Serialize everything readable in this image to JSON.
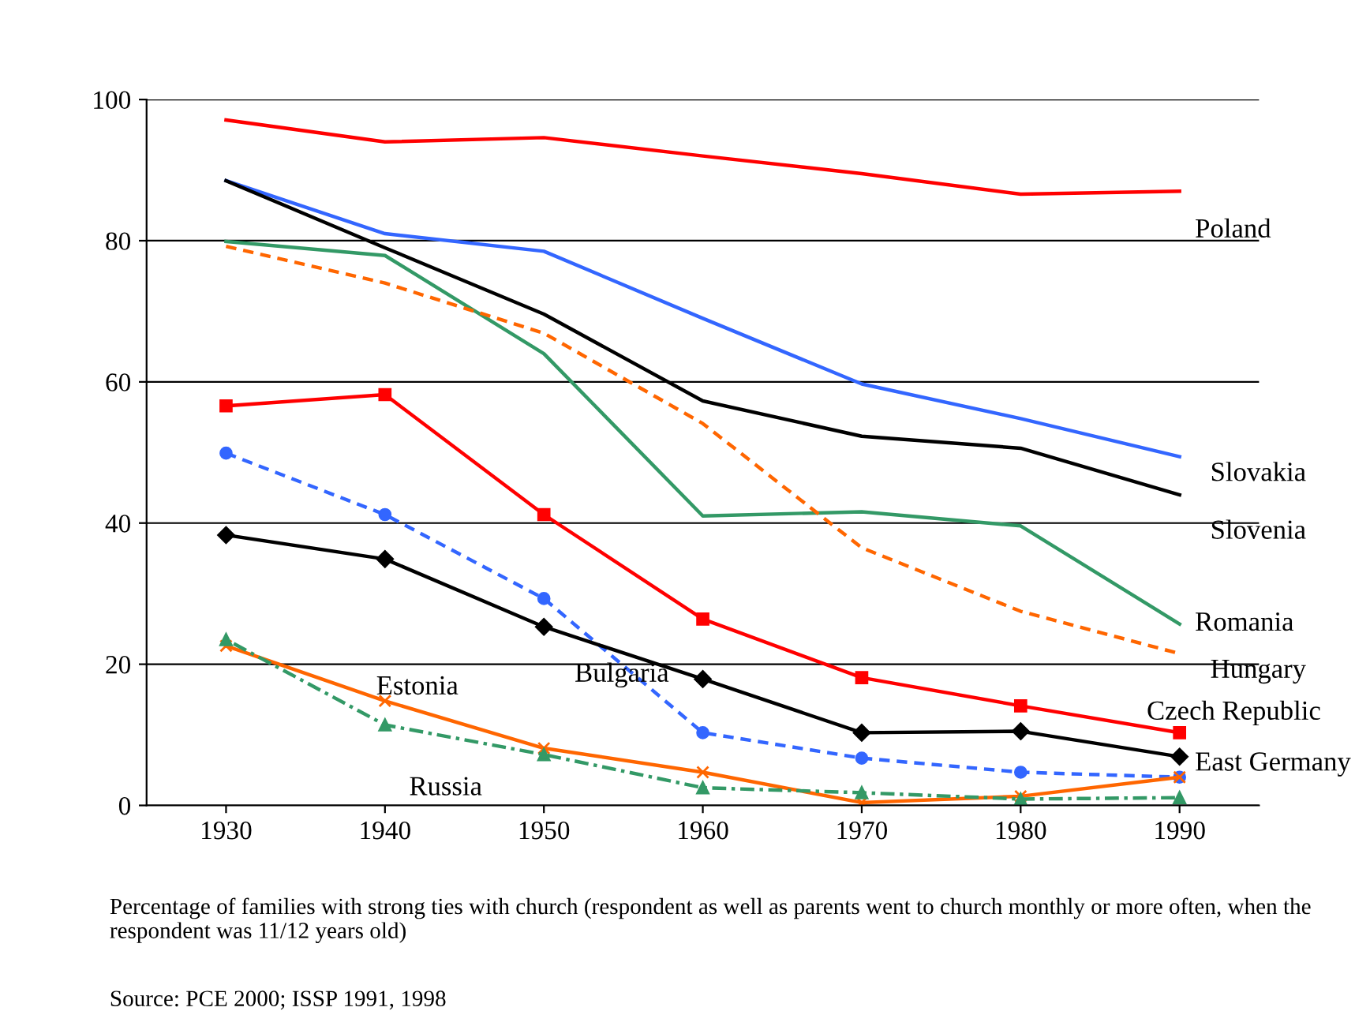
{
  "chart_data": {
    "type": "line",
    "x": [
      1930,
      1940,
      1950,
      1960,
      1970,
      1980,
      1990
    ],
    "xlim": [
      1925,
      1995
    ],
    "xticks": [
      1930,
      1940,
      1950,
      1960,
      1970,
      1980,
      1990
    ],
    "ylim": [
      0,
      100
    ],
    "yticks": [
      0,
      20,
      40,
      60,
      80,
      100
    ],
    "grid": "y",
    "legend": false,
    "series": [
      {
        "name": "Poland",
        "color": "#ff0000",
        "values": [
          97.1,
          94.0,
          94.6,
          92.0,
          89.5,
          86.6,
          87.0
        ],
        "marker": "none",
        "line_style": "solid"
      },
      {
        "name": "Slovakia",
        "color": "#3366ff",
        "values": [
          88.5,
          81.0,
          78.5,
          69.0,
          59.7,
          54.8,
          49.4
        ],
        "marker": "none",
        "line_style": "solid"
      },
      {
        "name": "Slovenia",
        "color": "#000000",
        "values": [
          88.5,
          79.0,
          69.6,
          57.3,
          52.3,
          50.6,
          44.0
        ],
        "marker": "none",
        "line_style": "solid"
      },
      {
        "name": "Romania",
        "color": "#339966",
        "values": [
          79.9,
          77.9,
          64.0,
          41.0,
          41.6,
          39.6,
          25.7
        ],
        "marker": "none",
        "line_style": "solid"
      },
      {
        "name": "Hungary",
        "color": "#ff6600",
        "values": [
          79.2,
          74.0,
          66.9,
          54.1,
          36.5,
          27.5,
          21.5
        ],
        "marker": "none",
        "line_style": "dashed"
      },
      {
        "name": "Czech Republic",
        "color": "#ff0000",
        "values": [
          56.6,
          58.2,
          41.2,
          26.4,
          18.1,
          14.1,
          10.3
        ],
        "marker": "square",
        "line_style": "solid"
      },
      {
        "name": "East Germany",
        "color": "#3366ff",
        "values": [
          49.9,
          41.2,
          29.3,
          10.3,
          6.7,
          4.7,
          4.0
        ],
        "marker": "circle",
        "line_style": "dashed"
      },
      {
        "name": "Bulgaria",
        "color": "#000000",
        "values": [
          38.3,
          34.9,
          25.3,
          17.9,
          10.3,
          10.5,
          6.9
        ],
        "marker": "diamond",
        "line_style": "solid"
      },
      {
        "name": "Estonia",
        "color": "#ff6600",
        "values": [
          22.6,
          14.8,
          8.1,
          4.7,
          0.4,
          1.3,
          4.0
        ],
        "marker": "cross",
        "line_style": "solid"
      },
      {
        "name": "Russia",
        "color": "#339966",
        "values": [
          23.5,
          11.4,
          7.2,
          2.5,
          1.8,
          0.9,
          1.1
        ],
        "marker": "triangle",
        "line_style": "dotted"
      }
    ],
    "annotations": [
      "Percentage of families with strong ties with church (respondent as well as parents went to church monthly or more often, when the respondent was 11/12 years old)",
      "Source: PCE 2000; ISSP 1991, 1998"
    ]
  }
}
